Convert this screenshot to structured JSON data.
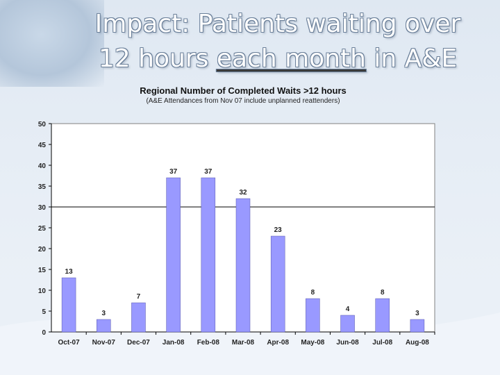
{
  "slide": {
    "title_line1": "Impact: Patients waiting over",
    "title_line2_pre": "12 hours ",
    "title_line2_underlined": "each month",
    "title_line2_post": " in A&E"
  },
  "chart_data": {
    "type": "bar",
    "title": "Regional Number of Completed Waits >12 hours",
    "subtitle": "(A&E Attendances from Nov 07 include unplanned reattenders)",
    "categories": [
      "Oct-07",
      "Nov-07",
      "Dec-07",
      "Jan-08",
      "Feb-08",
      "Mar-08",
      "Apr-08",
      "May-08",
      "Jun-08",
      "Jul-08",
      "Aug-08"
    ],
    "values": [
      13,
      3,
      7,
      37,
      37,
      32,
      23,
      8,
      4,
      8,
      3
    ],
    "ylim": [
      0,
      50
    ],
    "yticks": [
      0,
      5,
      10,
      15,
      20,
      25,
      30,
      35,
      40,
      45,
      50
    ],
    "reference_line": 30,
    "grid": false,
    "xlabel": "",
    "ylabel": "",
    "colors": {
      "bar": "#9999ff",
      "bar_edge": "#5555aa",
      "plot_bg": "#ffffff",
      "reference_line": "#000000"
    }
  }
}
